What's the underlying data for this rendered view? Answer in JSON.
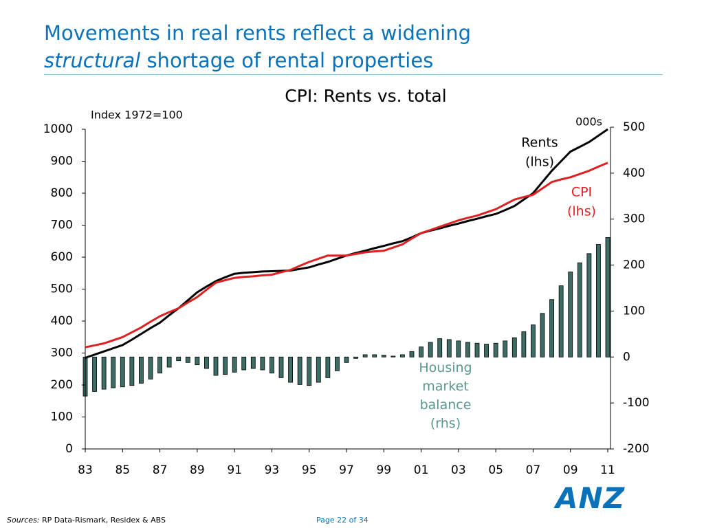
{
  "title_line1": "Movements in real rents reflect a widening",
  "title_line2_italic": "structural",
  "title_line2_rest": "shortage of rental properties",
  "sources_label": "Sources:",
  "sources_text": "RP Data-Rismark, Residex & ABS",
  "page": "Page 22 of 34",
  "logo": "ANZ",
  "chart_data": {
    "type": "line",
    "title": "CPI: Rents vs. total",
    "y_label": "Index 1972=100",
    "y2_label": "000s",
    "x": [
      1983,
      1983.5,
      1984,
      1984.5,
      1985,
      1985.5,
      1986,
      1986.5,
      1987,
      1987.5,
      1988,
      1988.5,
      1989,
      1989.5,
      1990,
      1990.5,
      1991,
      1991.5,
      1992,
      1992.5,
      1993,
      1993.5,
      1994,
      1994.5,
      1995,
      1995.5,
      1996,
      1996.5,
      1997,
      1997.5,
      1998,
      1998.5,
      1999,
      1999.5,
      2000,
      2000.5,
      2001,
      2001.5,
      2002,
      2002.5,
      2003,
      2003.5,
      2004,
      2004.5,
      2005,
      2005.5,
      2006,
      2006.5,
      2007,
      2007.5,
      2008,
      2008.5,
      2009,
      2009.5,
      2010,
      2010.5,
      2011
    ],
    "xlim": [
      1983,
      2011
    ],
    "xticks": [
      {
        "value": 1983,
        "label": "83"
      },
      {
        "value": 1985,
        "label": "85"
      },
      {
        "value": 1987,
        "label": "87"
      },
      {
        "value": 1989,
        "label": "89"
      },
      {
        "value": 1991,
        "label": "91"
      },
      {
        "value": 1993,
        "label": "93"
      },
      {
        "value": 1995,
        "label": "95"
      },
      {
        "value": 1997,
        "label": "97"
      },
      {
        "value": 1999,
        "label": "99"
      },
      {
        "value": 2001,
        "label": "01"
      },
      {
        "value": 2003,
        "label": "03"
      },
      {
        "value": 2005,
        "label": "05"
      },
      {
        "value": 2007,
        "label": "07"
      },
      {
        "value": 2009,
        "label": "09"
      },
      {
        "value": 2011,
        "label": "11"
      }
    ],
    "ylim": [
      0,
      1000
    ],
    "yticks": [
      0,
      100,
      200,
      300,
      400,
      500,
      600,
      700,
      800,
      900,
      1000
    ],
    "y2lim": [
      -200,
      500
    ],
    "y2ticks": [
      -200,
      -100,
      0,
      100,
      200,
      300,
      400,
      500
    ],
    "grid": false,
    "series": [
      {
        "name": "Rents",
        "note": "(lhs)",
        "color": "#000000",
        "type": "line",
        "values": [
          285,
          295,
          305,
          315,
          325,
          342,
          360,
          378,
          395,
          418,
          440,
          465,
          490,
          508,
          525,
          537,
          548,
          551,
          553,
          555,
          556,
          557,
          558,
          563,
          568,
          577,
          585,
          595,
          605,
          613,
          620,
          628,
          635,
          643,
          650,
          662,
          675,
          683,
          690,
          698,
          705,
          713,
          720,
          728,
          735,
          747,
          760,
          780,
          800,
          835,
          870,
          900,
          930,
          945,
          960,
          980,
          1000
        ]
      },
      {
        "name": "CPI",
        "note": "(lhs)",
        "color": "#e02020",
        "type": "line",
        "values": [
          318,
          324,
          330,
          340,
          350,
          365,
          380,
          398,
          415,
          428,
          440,
          458,
          475,
          498,
          520,
          528,
          535,
          538,
          540,
          543,
          545,
          553,
          560,
          573,
          585,
          595,
          605,
          605,
          605,
          610,
          615,
          618,
          620,
          630,
          640,
          658,
          675,
          685,
          695,
          705,
          715,
          723,
          730,
          740,
          750,
          765,
          780,
          788,
          795,
          815,
          835,
          843,
          850,
          860,
          870,
          883,
          895
        ]
      },
      {
        "name": "Housing market balance",
        "note": "(rhs)",
        "color": "#3d6b66",
        "type": "bar",
        "axis": "y2",
        "values": [
          -85,
          -75,
          -70,
          -67,
          -65,
          -62,
          -57,
          -48,
          -35,
          -22,
          -8,
          -12,
          -17,
          -25,
          -40,
          -38,
          -33,
          -28,
          -25,
          -28,
          -35,
          -45,
          -55,
          -60,
          -62,
          -55,
          -45,
          -30,
          -12,
          -3,
          5,
          5,
          4,
          2,
          5,
          12,
          22,
          32,
          40,
          38,
          35,
          32,
          30,
          28,
          30,
          35,
          42,
          55,
          70,
          95,
          125,
          155,
          185,
          205,
          225,
          245,
          260
        ]
      }
    ]
  }
}
